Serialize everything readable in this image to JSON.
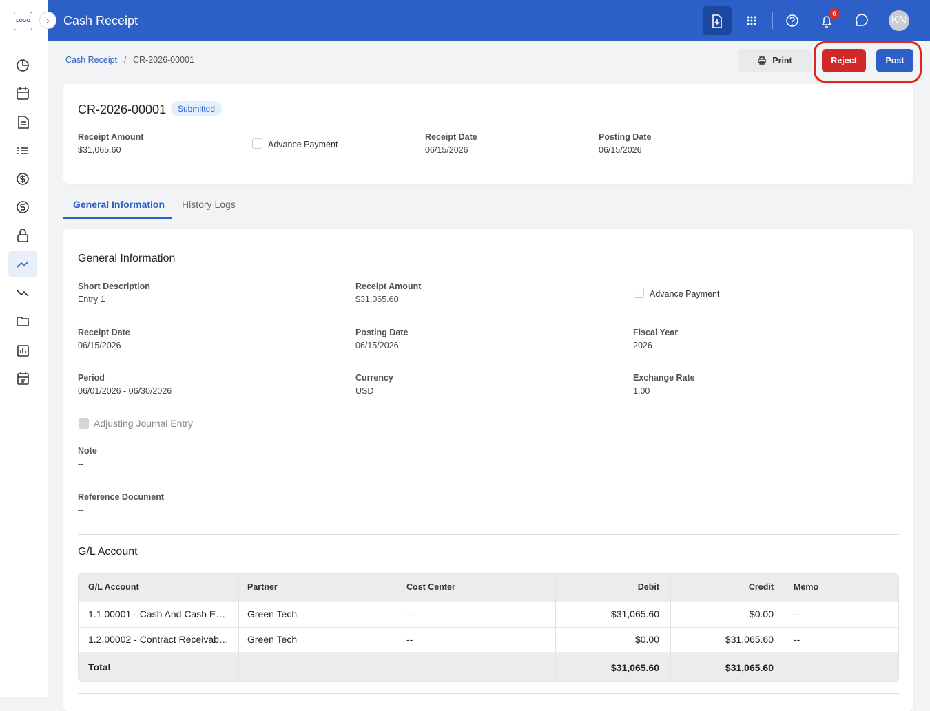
{
  "header": {
    "logo": "LOGO",
    "title": "Cash Receipt",
    "notifications": 6,
    "avatar": "KN"
  },
  "breadcrumb": [
    "Cash Receipt",
    "CR-2026-00001"
  ],
  "actions": {
    "print": "Print",
    "reject": "Reject",
    "post": "Post"
  },
  "summary": {
    "title": "CR-2026-00001",
    "status": "Submitted",
    "receipt_amount": {
      "label": "Receipt Amount",
      "value": "$31,065.60"
    },
    "advance_payment": "Advance Payment",
    "receipt_date": {
      "label": "Receipt Date",
      "value": "06/15/2026"
    },
    "posting_date": {
      "label": "Posting Date",
      "value": "06/15/2026"
    }
  },
  "tabs": [
    "General Information",
    "History Logs"
  ],
  "general": {
    "title": "General Information",
    "short_description": {
      "label": "Short Description",
      "value": "Entry 1"
    },
    "receipt_amount": {
      "label": "Receipt Amount",
      "value": "$31,065.60"
    },
    "advance_payment": "Advance Payment",
    "receipt_date": {
      "label": "Receipt Date",
      "value": "06/15/2026"
    },
    "posting_date": {
      "label": "Posting Date",
      "value": "06/15/2026"
    },
    "fiscal_year": {
      "label": "Fiscal Year",
      "value": "2026"
    },
    "period": {
      "label": "Period",
      "value": "06/01/2026 - 06/30/2026"
    },
    "currency": {
      "label": "Currency",
      "value": "USD"
    },
    "exchange_rate": {
      "label": "Exchange Rate",
      "value": "1.00"
    },
    "adjusting_entry": "Adjusting Journal Entry",
    "note": {
      "label": "Note",
      "value": "--"
    },
    "reference": {
      "label": "Reference Document",
      "value": "--"
    }
  },
  "gl": {
    "title": "G/L Account",
    "columns": [
      "G/L Account",
      "Partner",
      "Cost Center",
      "Debit",
      "Credit",
      "Memo"
    ],
    "rows": [
      [
        "1.1.00001 - Cash And Cash E…",
        "Green Tech",
        "--",
        "$31,065.60",
        "$0.00",
        "--"
      ],
      [
        "1.2.00002 - Contract Receivab…",
        "Green Tech",
        "--",
        "$0.00",
        "$31,065.60",
        "--"
      ]
    ],
    "total": {
      "label": "Total",
      "debit": "$31,065.60",
      "credit": "$31,065.60"
    }
  }
}
